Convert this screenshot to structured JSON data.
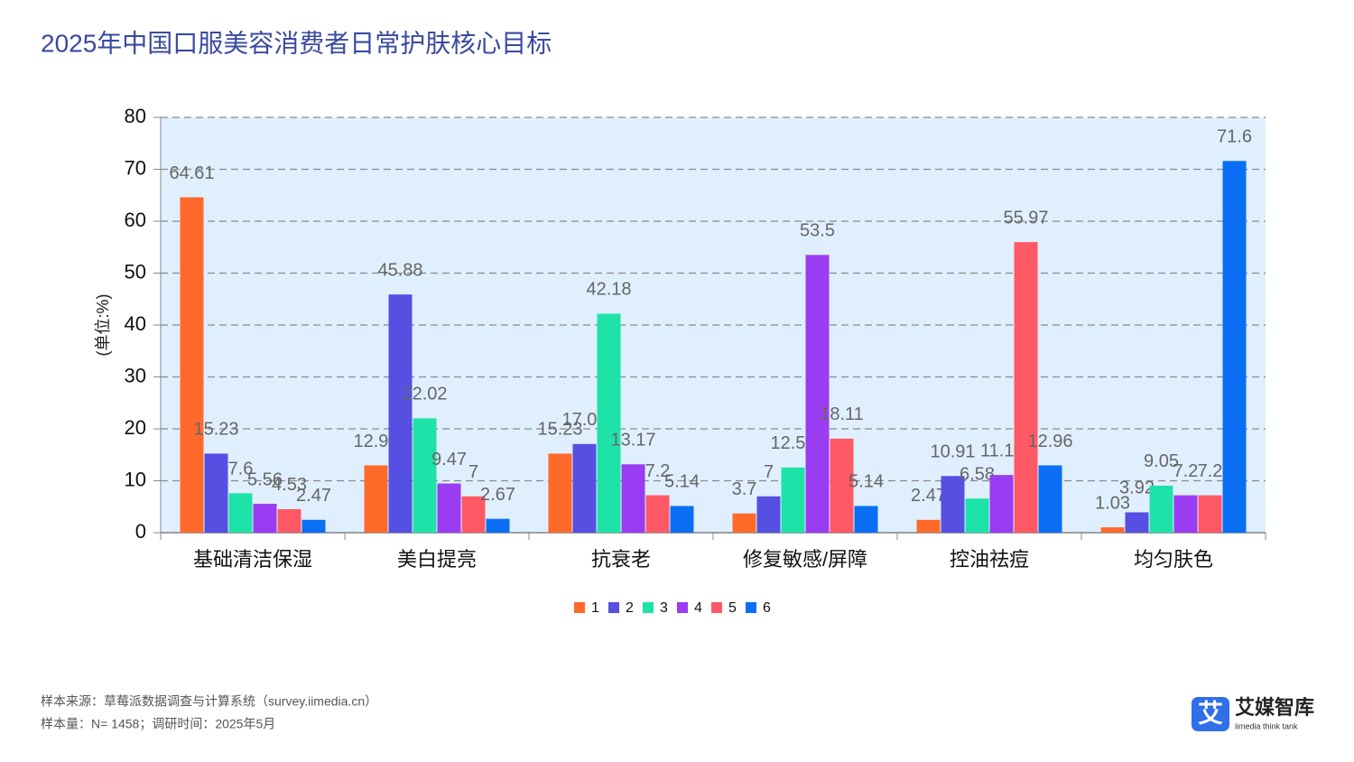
{
  "chart_data": {
    "type": "bar",
    "title": "2025年中国口服美容消费者日常护肤核心目标",
    "ylabel": "(单位:%)",
    "categories": [
      "基础清洁保湿",
      "美白提亮",
      "抗衰老",
      "修复敏感/屏障",
      "控油祛痘",
      "均匀肤色"
    ],
    "series": [
      {
        "name": "1",
        "color": "#ff6a2b",
        "values": [
          64.61,
          12.96,
          15.23,
          3.7,
          2.47,
          1.03
        ]
      },
      {
        "name": "2",
        "color": "#554fe2",
        "values": [
          15.23,
          45.88,
          17.08,
          7,
          10.91,
          3.92
        ]
      },
      {
        "name": "3",
        "color": "#1ee3a8",
        "values": [
          7.6,
          22.02,
          42.18,
          12.55,
          6.58,
          9.05
        ]
      },
      {
        "name": "4",
        "color": "#9a3cf2",
        "values": [
          5.56,
          9.47,
          13.17,
          53.5,
          11.11,
          7.2
        ]
      },
      {
        "name": "5",
        "color": "#ff5965",
        "values": [
          4.53,
          7,
          7.2,
          18.11,
          55.97,
          7.2
        ]
      },
      {
        "name": "6",
        "color": "#0b6ff6",
        "values": [
          2.47,
          2.67,
          5.14,
          5.14,
          12.96,
          71.6
        ]
      }
    ],
    "ylim": [
      0,
      80
    ],
    "yticks": [
      0,
      10,
      20,
      30,
      40,
      50,
      60,
      70,
      80
    ],
    "grid": true,
    "legend": "bottom"
  },
  "source": [
    "样本来源：草莓派数据调查与计算系统（survey.iimedia.cn）",
    "样本量：N= 1458；调研时间：2025年5月"
  ],
  "logo": {
    "icon": "艾",
    "name": "艾媒智库",
    "tagline": "iimedia think tank"
  }
}
